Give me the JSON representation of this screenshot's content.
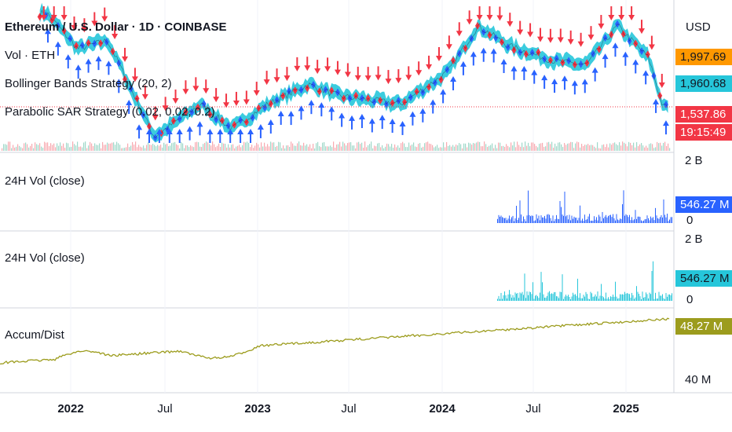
{
  "chart_data": {
    "type": "line",
    "title": "Ethereum / U.S. Dollar · 1D · COINBASE",
    "currency": "USD",
    "indicators": [
      "Vol · ETH",
      "Bollinger Bands Strategy (20, 2)",
      "Parabolic SAR Strategy (0.02, 0.02, 0.2)"
    ],
    "price_labels": {
      "upper": "1,997.69",
      "middle": "1,960.68",
      "last": "1,537.86",
      "countdown": "19:15:49"
    },
    "x_axis_labels": [
      "2022",
      "Jul",
      "2023",
      "Jul",
      "2024",
      "Jul",
      "2025"
    ],
    "price_series": {
      "name": "ETH/USD",
      "x": [
        "2021-11",
        "2022-01",
        "2022-03",
        "2022-06",
        "2022-09",
        "2022-11",
        "2023-01",
        "2023-04",
        "2023-06",
        "2023-10",
        "2024-01",
        "2024-03",
        "2024-05",
        "2024-08",
        "2024-10",
        "2024-12",
        "2025-02",
        "2025-03"
      ],
      "values": [
        4500,
        3000,
        3300,
        1100,
        1600,
        1200,
        1550,
        2000,
        1750,
        1600,
        2300,
        3900,
        3100,
        2600,
        2500,
        3900,
        2700,
        1550
      ]
    },
    "volume_panes": [
      {
        "title": "24H Vol (close)",
        "axis_top": "2 B",
        "axis_bottom": "0",
        "last": "546.27 M",
        "color": "#2962ff"
      },
      {
        "title": "24H Vol (close)",
        "axis_top": "2 B",
        "axis_bottom": "0",
        "last": "546.27 M",
        "color": "#26c6da"
      }
    ],
    "accum_dist": {
      "title": "Accum/Dist",
      "last": "48.27 M",
      "axis_label": "40 M",
      "color": "#9c9c1d"
    },
    "colors": {
      "candle_fill": "#26c6da",
      "buy_arrow": "#2962ff",
      "sell_arrow": "#f23645",
      "upper_tag": "#ff9800",
      "middle_tag": "#26c6da",
      "last_tag": "#f23645"
    }
  }
}
